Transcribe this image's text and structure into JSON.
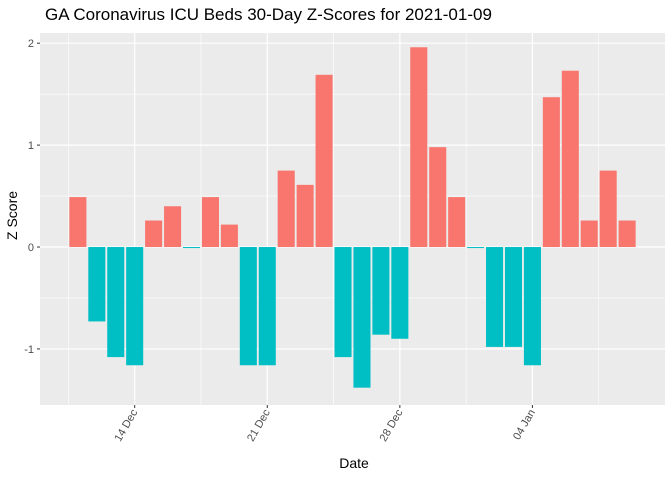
{
  "chart_data": {
    "type": "bar",
    "title": "GA Coronavirus ICU Beds 30-Day Z-Scores for 2021-01-09",
    "xlabel": "Date",
    "ylabel": "Z Score",
    "ylim": [
      -1.55,
      2.1
    ],
    "yticks": [
      -1,
      0,
      1,
      2
    ],
    "ytick_labels": [
      "-1",
      "0",
      "1",
      "2"
    ],
    "xticks": [
      {
        "date": "2020-12-14",
        "label": "14 Dec"
      },
      {
        "date": "2020-12-21",
        "label": "21 Dec"
      },
      {
        "date": "2020-12-28",
        "label": "28 Dec"
      },
      {
        "date": "2021-01-04",
        "label": "04 Jan"
      }
    ],
    "grid": true,
    "legend": "none",
    "colors": {
      "positive": "#F8766D",
      "negative": "#00BFC4",
      "panel": "#EBEBEB",
      "grid": "#FFFFFF"
    },
    "x": [
      "2020-12-11",
      "2020-12-12",
      "2020-12-13",
      "2020-12-14",
      "2020-12-15",
      "2020-12-16",
      "2020-12-17",
      "2020-12-18",
      "2020-12-19",
      "2020-12-20",
      "2020-12-21",
      "2020-12-22",
      "2020-12-23",
      "2020-12-24",
      "2020-12-25",
      "2020-12-26",
      "2020-12-27",
      "2020-12-28",
      "2020-12-29",
      "2020-12-30",
      "2020-12-31",
      "2021-01-01",
      "2021-01-02",
      "2021-01-03",
      "2021-01-04",
      "2021-01-05",
      "2021-01-06",
      "2021-01-07",
      "2021-01-08",
      "2021-01-09"
    ],
    "values": [
      0.49,
      -0.73,
      -1.08,
      -1.16,
      0.26,
      0.4,
      -0.01,
      0.49,
      0.22,
      -1.16,
      -1.16,
      0.75,
      0.61,
      1.69,
      -1.08,
      -1.38,
      -0.86,
      -0.9,
      1.96,
      0.98,
      0.49,
      -0.01,
      -0.98,
      -0.98,
      -1.16,
      1.47,
      1.73,
      0.26,
      0.75,
      0.26
    ]
  }
}
